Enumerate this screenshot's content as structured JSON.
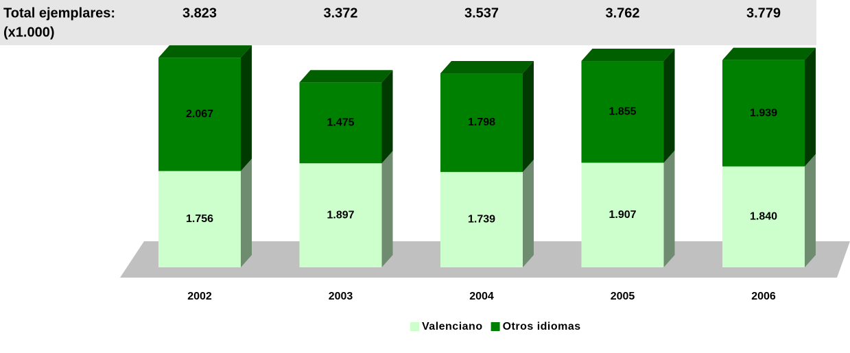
{
  "chart_data": {
    "type": "bar",
    "stacked": true,
    "totals": {
      "label": [
        "Total ejemplares:",
        "(x1.000)"
      ],
      "values": [
        3823,
        3372,
        3537,
        3762,
        3779
      ],
      "value_labels": [
        "3.823",
        "3.372",
        "3.537",
        "3.762",
        "3.779"
      ]
    },
    "categories": [
      "2002",
      "2003",
      "2004",
      "2005",
      "2006"
    ],
    "series": [
      {
        "name": "Valenciano",
        "color": "#ccffcc",
        "values": [
          1756,
          1897,
          1739,
          1907,
          1840
        ],
        "value_labels": [
          "1.756",
          "1.897",
          "1.739",
          "1.907",
          "1.840"
        ]
      },
      {
        "name": "Otros idiomas",
        "color": "#008000",
        "values": [
          2067,
          1475,
          1798,
          1855,
          1939
        ],
        "value_labels": [
          "2.067",
          "1.475",
          "1.798",
          "1.855",
          "1.939"
        ]
      }
    ]
  }
}
